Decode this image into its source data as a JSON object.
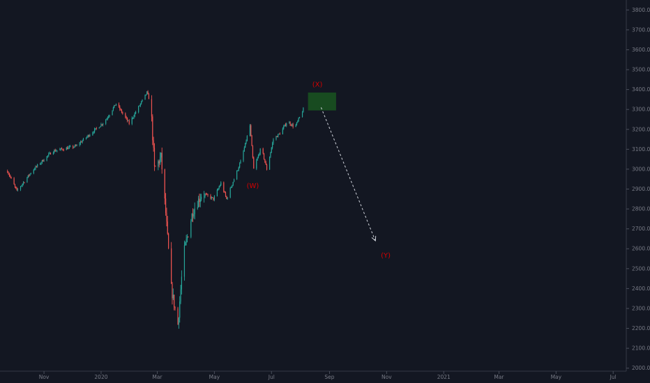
{
  "chart_data": {
    "type": "candlestick",
    "x_axis": {
      "tick_labels": [
        "Nov",
        "2020",
        "Mar",
        "May",
        "Jul",
        "Sep",
        "Nov",
        "2021",
        "Mar",
        "May",
        "Jul"
      ],
      "tick_dates": [
        "2019-11-01",
        "2020-01-01",
        "2020-03-01",
        "2020-05-01",
        "2020-07-01",
        "2020-09-01",
        "2020-11-01",
        "2021-01-01",
        "2021-03-01",
        "2021-05-01",
        "2021-07-01"
      ],
      "range": [
        "2019-09-15",
        "2021-07-15"
      ]
    },
    "y_axis": {
      "tick_labels": [
        "3800.0",
        "3700.0",
        "3600.0",
        "3500.0",
        "3400.0",
        "3300.0",
        "3200.0",
        "3100.0",
        "3000.0",
        "2900.0",
        "2800.0",
        "2700.0",
        "2600.0",
        "2500.0",
        "2400.0",
        "2300.0",
        "2200.0",
        "2100.0",
        "2000.0"
      ],
      "ylim": [
        1985,
        3850
      ],
      "position": "right"
    },
    "price_path": [
      [
        "2019-09-23",
        2990
      ],
      [
        "2019-10-03",
        2890
      ],
      [
        "2019-10-20",
        2995
      ],
      [
        "2019-11-10",
        3090
      ],
      [
        "2019-12-05",
        3115
      ],
      [
        "2020-01-05",
        3240
      ],
      [
        "2020-01-17",
        3330
      ],
      [
        "2020-01-31",
        3230
      ],
      [
        "2020-02-19",
        3385
      ],
      [
        "2020-02-23",
        3330
      ],
      [
        "2020-02-27",
        3000
      ],
      [
        "2020-03-05",
        3060
      ],
      [
        "2020-03-10",
        2780
      ],
      [
        "2020-03-16",
        2400
      ],
      [
        "2020-03-23",
        2220
      ],
      [
        "2020-03-29",
        2570
      ],
      [
        "2020-04-08",
        2790
      ],
      [
        "2020-04-18",
        2880
      ],
      [
        "2020-04-30",
        2850
      ],
      [
        "2020-05-08",
        2930
      ],
      [
        "2020-05-14",
        2850
      ],
      [
        "2020-05-30",
        3050
      ],
      [
        "2020-06-08",
        3220
      ],
      [
        "2020-06-12",
        3000
      ],
      [
        "2020-06-20",
        3110
      ],
      [
        "2020-06-26",
        3000
      ],
      [
        "2020-07-03",
        3150
      ],
      [
        "2020-07-10",
        3180
      ],
      [
        "2020-07-18",
        3240
      ],
      [
        "2020-07-26",
        3210
      ],
      [
        "2020-08-04",
        3300
      ]
    ],
    "candle_color_up": "#26a69a",
    "candle_color_down": "#ef5350",
    "annotations": [
      {
        "text": "(X)",
        "date": "2020-08-19",
        "value": 3425
      },
      {
        "text": "(W)",
        "date": "2020-06-11",
        "value": 2915
      },
      {
        "text": "(Y)",
        "date": "2020-10-31",
        "value": 2565
      }
    ],
    "target_zone": {
      "from": "2020-08-09",
      "to": "2020-09-08",
      "low": 3295,
      "high": 3385,
      "color": "#1b5e20"
    },
    "projection_arrow": {
      "from": [
        "2020-08-23",
        3310
      ],
      "to": [
        "2020-10-20",
        2640
      ]
    },
    "annotation_color": "#d50000",
    "grid": false
  }
}
